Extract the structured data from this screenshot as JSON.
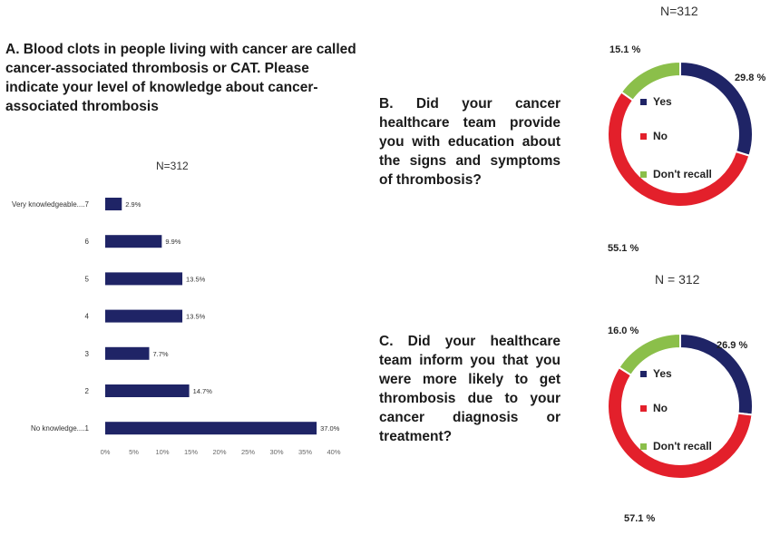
{
  "colors": {
    "navy": "#1f2466",
    "red": "#e3202b",
    "green": "#8bbf4a"
  },
  "chart_data": [
    {
      "type": "bar",
      "orientation": "horizontal",
      "title": "A. Blood clots in people living with cancer are called cancer-associated thrombosis or CAT. Please indicate your level of  knowledge about cancer-associated thrombosis",
      "subtitle": "N=312",
      "categories": [
        "Very knowledgeable....7",
        "6",
        "5",
        "4",
        "3",
        "2",
        "No knowledge....1"
      ],
      "values": [
        2.9,
        9.9,
        13.5,
        13.5,
        7.7,
        14.7,
        37.0
      ],
      "value_labels": [
        "2.9%",
        "9.9%",
        "13.5%",
        "13.5%",
        "7.7%",
        "14.7%",
        "37.0%"
      ],
      "xlim": [
        0,
        40
      ],
      "x_ticks": [
        "0%",
        "5%",
        "10%",
        "15%",
        "20%",
        "25%",
        "30%",
        "35%",
        "40%"
      ],
      "grid": false,
      "color": "#1f2466"
    },
    {
      "type": "pie",
      "style": "donut",
      "title": "B. Did your cancer healthcare team provide you with education about the signs and symptoms of thrombosis?",
      "subtitle": "N=312",
      "slices": [
        {
          "label": "Yes",
          "value": 29.8,
          "value_label": "29.8 %",
          "color": "#1f2466"
        },
        {
          "label": "No",
          "value": 55.1,
          "value_label": "55.1 %",
          "color": "#e3202b"
        },
        {
          "label": "Don't recall",
          "value": 15.1,
          "value_label": "15.1 %",
          "color": "#8bbf4a"
        }
      ],
      "legend": "inside"
    },
    {
      "type": "pie",
      "style": "donut",
      "title": "C. Did your healthcare team inform you that you were more likely to get thrombosis due to your cancer diagnosis or treatment?",
      "subtitle": "N = 312",
      "slices": [
        {
          "label": "Yes",
          "value": 26.9,
          "value_label": "26.9 %",
          "color": "#1f2466"
        },
        {
          "label": "No",
          "value": 57.1,
          "value_label": "57.1 %",
          "color": "#e3202b"
        },
        {
          "label": "Don't recall",
          "value": 16.0,
          "value_label": "16.0 %",
          "color": "#8bbf4a"
        }
      ],
      "legend": "inside"
    }
  ]
}
